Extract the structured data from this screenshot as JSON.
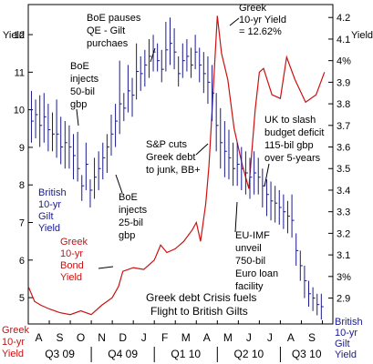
{
  "chart_data": {
    "type": "line",
    "title": "",
    "colors": {
      "greek": "#cc1111",
      "gilt": "#1a1a8c",
      "text": "#000000",
      "label_blue": "#1a1a8c",
      "label_red": "#cc1111",
      "frame": "#000000"
    },
    "axes": {
      "left": {
        "title": "Yield",
        "range": [
          4.3,
          12.8
        ],
        "ticks": [
          5,
          6,
          7,
          8,
          9,
          10,
          11,
          12
        ]
      },
      "right": {
        "title": "Yield",
        "range": [
          2.78,
          4.26
        ],
        "ticks": [
          "2.9",
          "3%",
          "3.1",
          "3.2",
          "3.3",
          "3.4",
          "3.5",
          "3.6",
          "3.7",
          "3.8",
          "3.9",
          "4%",
          "4.1",
          "4.2"
        ],
        "tick_values": [
          2.9,
          3.0,
          3.1,
          3.2,
          3.3,
          3.4,
          3.5,
          3.6,
          3.7,
          3.8,
          3.9,
          4.0,
          4.1,
          4.2
        ]
      },
      "x": {
        "range": [
          0,
          14.5
        ],
        "months": [
          "A",
          "S",
          "O",
          "N",
          "D",
          "J",
          "F",
          "M",
          "A",
          "M",
          "J",
          "J",
          "A",
          "S"
        ],
        "quarters": [
          "Q3 09",
          "Q4 09",
          "Q1 10",
          "Q2 10",
          "Q3 10"
        ],
        "quarter_bounds": [
          0,
          3,
          6,
          9,
          12,
          14.5
        ]
      }
    },
    "bottom_left_label": [
      "Greek",
      "10-yr",
      "Yield"
    ],
    "bottom_right_label": [
      "British",
      "10-yr",
      "Gilt",
      "Yield"
    ],
    "series": [
      {
        "name": "Greek 10-yr Bond Yield",
        "axis": "left",
        "style": "line",
        "x": [
          0,
          0.3,
          0.6,
          1.0,
          1.5,
          2.0,
          2.5,
          3.0,
          3.5,
          4.0,
          4.3,
          4.5,
          5.0,
          5.5,
          6.0,
          6.3,
          6.6,
          7.0,
          7.4,
          7.8,
          8.0,
          8.2,
          8.45,
          8.6,
          8.75,
          9.0,
          9.2,
          9.5,
          9.8,
          10.2,
          10.5,
          10.8,
          11.0,
          11.2,
          11.6,
          12.0,
          12.3,
          12.7,
          13.2,
          13.7,
          14.1
        ],
        "values": [
          5.3,
          4.9,
          4.8,
          4.7,
          4.6,
          4.55,
          4.65,
          4.55,
          4.8,
          5.0,
          5.3,
          5.7,
          5.8,
          5.75,
          6.0,
          6.4,
          6.2,
          6.3,
          6.5,
          6.8,
          7.0,
          6.5,
          7.5,
          8.5,
          10.0,
          12.5,
          11.5,
          10.8,
          9.5,
          8.5,
          7.9,
          10.0,
          11.0,
          11.1,
          10.4,
          10.3,
          11.4,
          10.8,
          10.2,
          10.4,
          11.0
        ]
      },
      {
        "name": "British 10-yr Gilt Yield",
        "axis": "right",
        "style": "hlc",
        "x": [
          0.15,
          0.35,
          0.55,
          0.75,
          0.95,
          1.15,
          1.35,
          1.55,
          1.75,
          1.95,
          2.15,
          2.35,
          2.55,
          2.75,
          2.95,
          3.15,
          3.35,
          3.55,
          3.75,
          3.95,
          4.15,
          4.35,
          4.55,
          4.75,
          4.95,
          5.15,
          5.35,
          5.55,
          5.75,
          5.95,
          6.15,
          6.35,
          6.55,
          6.75,
          6.95,
          7.15,
          7.35,
          7.55,
          7.75,
          7.95,
          8.15,
          8.35,
          8.55,
          8.75,
          8.95,
          9.15,
          9.35,
          9.55,
          9.75,
          9.95,
          10.15,
          10.35,
          10.55,
          10.75,
          10.95,
          11.15,
          11.35,
          11.55,
          11.75,
          11.95,
          12.15,
          12.35,
          12.55,
          12.75,
          12.95,
          13.15,
          13.35,
          13.55,
          13.75,
          13.95
        ],
        "high": [
          3.86,
          3.82,
          3.84,
          3.85,
          3.8,
          3.76,
          3.82,
          3.74,
          3.72,
          3.7,
          3.66,
          3.67,
          3.47,
          3.62,
          3.45,
          3.55,
          3.58,
          3.62,
          3.66,
          3.75,
          3.8,
          4.0,
          3.85,
          3.98,
          3.92,
          4.08,
          4.02,
          4.05,
          4.1,
          4.12,
          4.08,
          4.05,
          4.18,
          4.2,
          4.15,
          4.02,
          4.08,
          4.1,
          4.06,
          4.12,
          4.06,
          4.04,
          4.02,
          3.98,
          3.85,
          3.78,
          3.72,
          3.68,
          3.62,
          3.62,
          3.6,
          3.58,
          3.55,
          3.58,
          3.55,
          3.5,
          3.45,
          3.44,
          3.42,
          3.4,
          3.38,
          3.35,
          3.38,
          3.2,
          3.12,
          3.05,
          2.98,
          2.95,
          2.92,
          2.92
        ],
        "low": [
          3.62,
          3.64,
          3.6,
          3.62,
          3.58,
          3.58,
          3.55,
          3.52,
          3.5,
          3.5,
          3.45,
          3.44,
          3.35,
          3.4,
          3.32,
          3.36,
          3.4,
          3.45,
          3.48,
          3.56,
          3.6,
          3.66,
          3.72,
          3.76,
          3.74,
          3.82,
          3.86,
          3.88,
          3.92,
          3.95,
          3.95,
          3.9,
          3.95,
          3.98,
          3.96,
          3.88,
          3.92,
          3.95,
          3.92,
          3.96,
          3.9,
          3.85,
          3.8,
          3.72,
          3.58,
          3.5,
          3.46,
          3.45,
          3.42,
          3.42,
          3.4,
          3.38,
          3.36,
          3.38,
          3.38,
          3.32,
          3.28,
          3.26,
          3.25,
          3.24,
          3.22,
          3.2,
          3.18,
          3.05,
          2.98,
          2.9,
          2.86,
          2.84,
          2.82,
          2.8
        ],
        "close": [
          3.72,
          3.75,
          3.7,
          3.74,
          3.68,
          3.66,
          3.66,
          3.6,
          3.62,
          3.6,
          3.56,
          3.5,
          3.42,
          3.52,
          3.4,
          3.46,
          3.5,
          3.55,
          3.6,
          3.66,
          3.72,
          3.8,
          3.78,
          3.86,
          3.84,
          3.95,
          3.94,
          3.98,
          4.02,
          4.04,
          4.0,
          3.96,
          4.05,
          4.08,
          4.04,
          3.94,
          4.0,
          4.02,
          3.98,
          4.04,
          3.98,
          3.94,
          3.9,
          3.85,
          3.7,
          3.62,
          3.58,
          3.55,
          3.5,
          3.52,
          3.5,
          3.48,
          3.46,
          3.48,
          3.46,
          3.42,
          3.38,
          3.35,
          3.34,
          3.32,
          3.3,
          3.28,
          3.26,
          3.12,
          3.05,
          2.98,
          2.92,
          2.9,
          2.87,
          2.86
        ]
      }
    ],
    "annotations": [
      {
        "lines": [
          "BoE pauses",
          "QE - Gilt",
          "purchaes"
        ],
        "color": "#000000"
      },
      {
        "lines": [
          "Greek",
          "10-yr Yield",
          "= 12.62%"
        ],
        "color": "#000000"
      },
      {
        "lines": [
          "BoE",
          "injects",
          "50-bil",
          "gbp"
        ],
        "color": "#000000"
      },
      {
        "lines": [
          "UK to slash",
          "budget deficit",
          "115-bil gbp",
          "over 5-years"
        ],
        "color": "#000000"
      },
      {
        "lines": [
          "S&P cuts",
          "Greek debt",
          "to junk, BB+"
        ],
        "color": "#000000"
      },
      {
        "lines": [
          "British",
          "10-yr",
          "Gilt",
          "Yield"
        ],
        "color": "#1a1a8c"
      },
      {
        "lines": [
          "BoE",
          "injects",
          "25-bil",
          "gbp"
        ],
        "color": "#000000"
      },
      {
        "lines": [
          "EU-IMF",
          "unveil",
          "750-bil",
          "Euro loan",
          "facility"
        ],
        "color": "#000000"
      },
      {
        "lines": [
          "Greek",
          "10-yr",
          "Bond",
          "Yield"
        ],
        "color": "#cc1111"
      },
      {
        "lines": [
          "Greek debt Crisis fuels",
          "Flight to British Gilts"
        ],
        "color": "#000000"
      }
    ]
  }
}
